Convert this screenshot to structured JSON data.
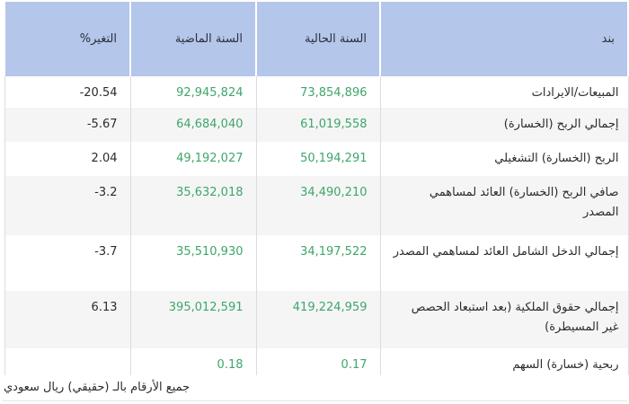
{
  "table": {
    "headers": {
      "item": "بند",
      "current_year": "السنة الحالية",
      "previous_year": "السنة الماضية",
      "change_pct": "التغير%"
    },
    "rows": [
      {
        "item": "المبيعات/الايرادات",
        "current_year": "73,854,896",
        "previous_year": "92,945,824",
        "change_pct": "20.54-"
      },
      {
        "item": "إجمالي الربح (الخسارة)",
        "current_year": "61,019,558",
        "previous_year": "64,684,040",
        "change_pct": "5.67-"
      },
      {
        "item": "الربح (الخسارة) التشغيلي",
        "current_year": "50,194,291",
        "previous_year": "49,192,027",
        "change_pct": "2.04"
      },
      {
        "item": "صافي الربح (الخسارة) العائد لمساهمي المصدر",
        "current_year": "34,490,210",
        "previous_year": "35,632,018",
        "change_pct": "3.2-"
      },
      {
        "item": "إجمالي الدخل الشامل العائد لمساهمي المصدر",
        "current_year": "34,197,522",
        "previous_year": "35,510,930",
        "change_pct": "3.7-"
      },
      {
        "item": "إجمالي حقوق الملكية (بعد استبعاد الحصص غير المسيطرة)",
        "current_year": "419,224,959",
        "previous_year": "395,012,591",
        "change_pct": "6.13"
      },
      {
        "item": "ربحية (خسارة) السهم",
        "current_year": "0.17",
        "previous_year": "0.18",
        "change_pct": ""
      }
    ]
  },
  "footer": {
    "note": "جميع الأرقام بالـ (حقيقي) ريال سعودي"
  },
  "colors": {
    "header_bg": "#b4c6ea",
    "value_green": "#3ea66b",
    "alt_row_bg": "#f5f5f5"
  }
}
